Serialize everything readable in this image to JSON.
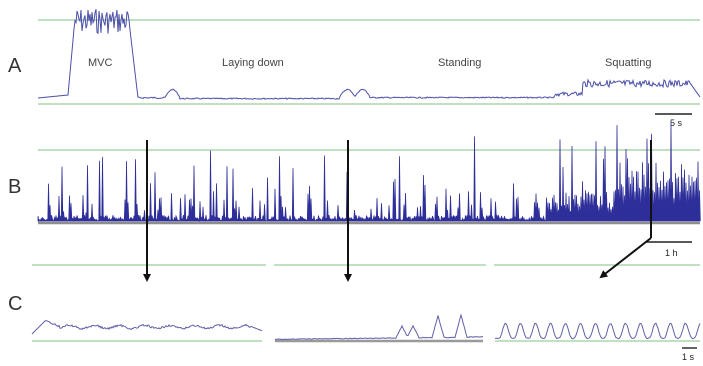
{
  "chart_data": [
    {
      "type": "line",
      "panel_label": "A",
      "annotations": [
        "MVC",
        "Laying down",
        "Standing",
        "Squatting"
      ],
      "scale_bar": "5 s",
      "colors": {
        "signal": "#4a4fa8",
        "reference": "#9ccc9c"
      }
    },
    {
      "type": "area",
      "panel_label": "B",
      "scale_bar": "1 h",
      "colors": {
        "signal": "#2e2f9a",
        "reference": "#9ccc9c"
      }
    },
    {
      "type": "line",
      "panel_label": "C",
      "scale_bar": "1 s",
      "colors": {
        "signal": "#6060a8",
        "reference": "#9ccc9c"
      }
    }
  ]
}
